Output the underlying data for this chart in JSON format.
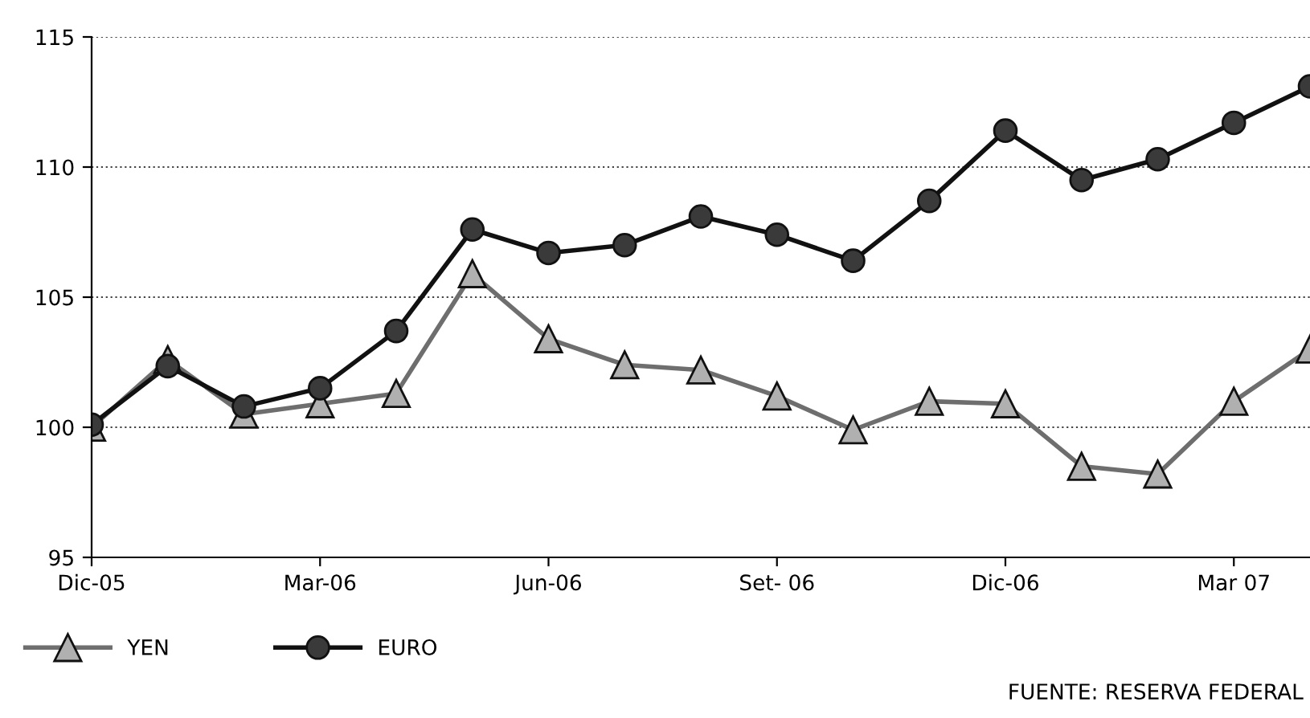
{
  "chart_data": {
    "type": "line",
    "categories": [
      "Dic-05",
      null,
      null,
      "Mar-06",
      null,
      null,
      "Jun-06",
      null,
      null,
      "Set- 06",
      null,
      null,
      "Dic-06",
      null,
      null,
      "Mar 07",
      null
    ],
    "ylim": [
      95,
      115
    ],
    "yticks": [
      95,
      100,
      105,
      110,
      115
    ],
    "grid": "y",
    "legend": "bottom",
    "line_style": "solid",
    "series": [
      {
        "name": "YEN",
        "color": "#6e6e6e",
        "marker": "triangle",
        "values": [
          100.0,
          102.6,
          100.5,
          100.9,
          101.3,
          105.9,
          103.4,
          102.4,
          102.2,
          101.2,
          99.9,
          101.0,
          100.9,
          98.5,
          98.2,
          101.0,
          103.0
        ]
      },
      {
        "name": "EURO",
        "color": "#111111",
        "marker": "circle",
        "values": [
          100.1,
          102.35,
          100.8,
          101.5,
          103.7,
          107.6,
          106.7,
          107.0,
          108.1,
          107.4,
          106.4,
          108.7,
          111.4,
          109.5,
          110.3,
          111.7,
          113.1
        ]
      }
    ],
    "annotations": [
      "FUENTE: RESERVA FEDERAL"
    ]
  }
}
